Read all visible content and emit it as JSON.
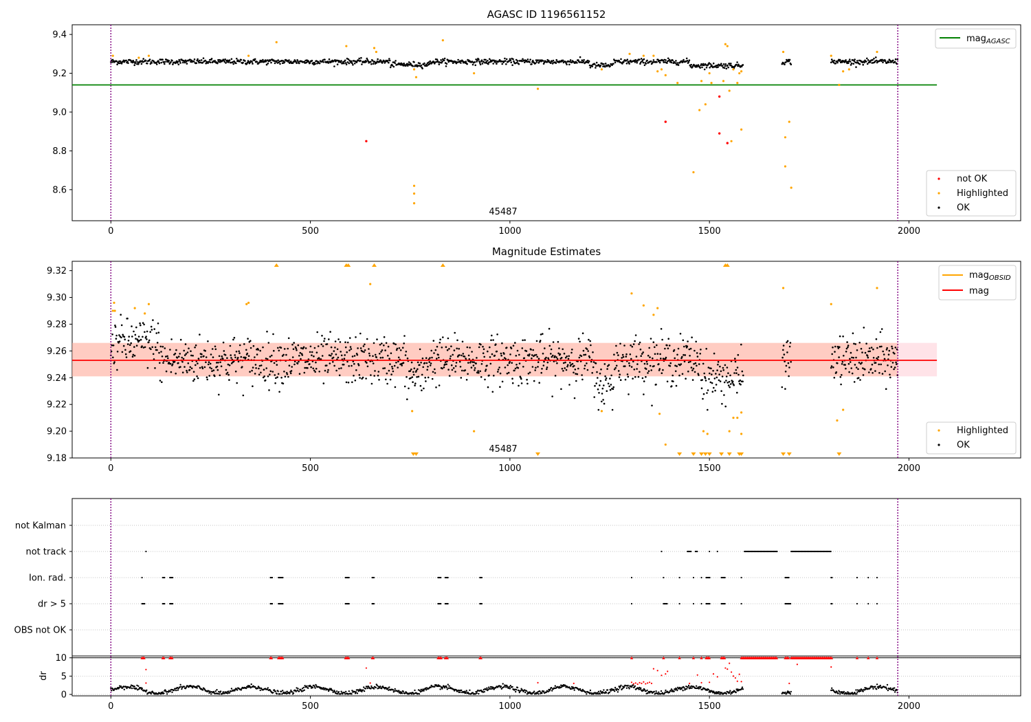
{
  "chart_data": [
    {
      "type": "scatter",
      "title": "AGASC ID 1196561152",
      "xlim": [
        -97,
        2280
      ],
      "ylim": [
        8.44,
        9.45
      ],
      "xticks": [
        "0",
        "500",
        "1000",
        "1500",
        "2000"
      ],
      "yticks": [
        "8.6",
        "8.8",
        "9.0",
        "9.2",
        "9.4"
      ],
      "annotation": "45487",
      "vlines": [
        0,
        1972
      ],
      "mag_agasc": 9.14,
      "legend_upper": [
        "mag_AGASC"
      ],
      "legend_lower": [
        "not OK",
        "Highlighted",
        "OK"
      ],
      "series": [
        {
          "name": "OK",
          "color": "#000000",
          "trend": 9.26,
          "segments": [
            [
              0,
              1585
            ],
            [
              1682,
              1705
            ],
            [
              1805,
              1972
            ]
          ]
        },
        {
          "name": "Highlighted",
          "color": "#ffa500",
          "points": [
            [
              5,
              9.29
            ],
            [
              70,
              9.28
            ],
            [
              95,
              9.29
            ],
            [
              345,
              9.29
            ],
            [
              415,
              9.36
            ],
            [
              590,
              9.34
            ],
            [
              660,
              9.33
            ],
            [
              665,
              9.31
            ],
            [
              760,
              9.22
            ],
            [
              765,
              9.18
            ],
            [
              760,
              8.62
            ],
            [
              760,
              8.58
            ],
            [
              760,
              8.53
            ],
            [
              832,
              9.37
            ],
            [
              910,
              9.2
            ],
            [
              1070,
              9.12
            ],
            [
              1230,
              9.22
            ],
            [
              1300,
              9.3
            ],
            [
              1335,
              9.29
            ],
            [
              1360,
              9.29
            ],
            [
              1370,
              9.21
            ],
            [
              1380,
              9.22
            ],
            [
              1390,
              9.19
            ],
            [
              1420,
              9.15
            ],
            [
              1460,
              8.69
            ],
            [
              1475,
              9.01
            ],
            [
              1480,
              9.16
            ],
            [
              1490,
              9.04
            ],
            [
              1500,
              9.2
            ],
            [
              1505,
              9.15
            ],
            [
              1535,
              9.16
            ],
            [
              1540,
              9.35
            ],
            [
              1545,
              9.34
            ],
            [
              1550,
              9.11
            ],
            [
              1555,
              8.85
            ],
            [
              1560,
              9.22
            ],
            [
              1570,
              9.15
            ],
            [
              1575,
              9.2
            ],
            [
              1580,
              8.91
            ],
            [
              1580,
              9.21
            ],
            [
              1685,
              9.31
            ],
            [
              1690,
              8.87
            ],
            [
              1690,
              8.72
            ],
            [
              1700,
              8.95
            ],
            [
              1705,
              8.61
            ],
            [
              1805,
              9.29
            ],
            [
              1825,
              9.14
            ],
            [
              1835,
              9.21
            ],
            [
              1850,
              9.22
            ],
            [
              1920,
              9.31
            ]
          ]
        },
        {
          "name": "not OK",
          "color": "#ff0000",
          "points": [
            [
              640,
              8.85
            ],
            [
              1390,
              8.95
            ],
            [
              1525,
              9.08
            ],
            [
              1525,
              8.89
            ],
            [
              1545,
              8.84
            ]
          ]
        }
      ]
    },
    {
      "type": "scatter",
      "title": "Magnitude Estimates",
      "xlim": [
        -97,
        2280
      ],
      "ylim": [
        9.18,
        9.327
      ],
      "xticks": [
        "0",
        "500",
        "1000",
        "1500",
        "2000"
      ],
      "yticks": [
        "9.18",
        "9.20",
        "9.22",
        "9.24",
        "9.26",
        "9.28",
        "9.30",
        "9.32"
      ],
      "annotation": "45487",
      "vlines": [
        0,
        1972
      ],
      "mag": 9.253,
      "mag_band": [
        9.241,
        9.266
      ],
      "legend_upper": [
        "mag_OBSID",
        "mag"
      ],
      "legend_lower": [
        "Highlighted",
        "OK"
      ],
      "highlighted_points": [
        [
          5,
          9.29
        ],
        [
          8,
          9.296
        ],
        [
          10,
          9.29
        ],
        [
          60,
          9.292
        ],
        [
          85,
          9.288
        ],
        [
          95,
          9.295
        ],
        [
          340,
          9.295
        ],
        [
          345,
          9.296
        ],
        [
          650,
          9.31
        ],
        [
          755,
          9.215
        ],
        [
          910,
          9.2
        ],
        [
          1230,
          9.215
        ],
        [
          1305,
          9.303
        ],
        [
          1335,
          9.294
        ],
        [
          1360,
          9.287
        ],
        [
          1370,
          9.292
        ],
        [
          1375,
          9.213
        ],
        [
          1390,
          9.19
        ],
        [
          1485,
          9.2
        ],
        [
          1495,
          9.198
        ],
        [
          1550,
          9.2
        ],
        [
          1560,
          9.21
        ],
        [
          1570,
          9.21
        ],
        [
          1580,
          9.198
        ],
        [
          1580,
          9.214
        ],
        [
          1685,
          9.307
        ],
        [
          1805,
          9.295
        ],
        [
          1820,
          9.208
        ],
        [
          1835,
          9.216
        ],
        [
          1920,
          9.307
        ]
      ],
      "triangles_up": [
        415,
        590,
        595,
        660,
        832,
        1540,
        1545
      ],
      "triangles_down": [
        758,
        765,
        1070,
        1425,
        1460,
        1480,
        1490,
        1500,
        1530,
        1550,
        1575,
        1580,
        1685,
        1700,
        1825
      ]
    },
    {
      "type": "scatter",
      "title": "",
      "xlim": [
        -97,
        2280
      ],
      "xticks": [
        "0",
        "500",
        "1000",
        "1500",
        "2000"
      ],
      "vlines": [
        0,
        1972
      ],
      "categories": [
        "not Kalman",
        "not track",
        "Ion. rad.",
        "dr > 5",
        "OBS not OK"
      ],
      "flag_events": {
        "not track": [
          [
            88,
            88
          ],
          [
            1380,
            1380
          ],
          [
            1445,
            1455
          ],
          [
            1465,
            1470
          ],
          [
            1500,
            1500
          ],
          [
            1520,
            1520
          ],
          [
            1588,
            1670
          ],
          [
            1705,
            1805
          ]
        ],
        "Ion. rad.": [
          [
            78,
            78
          ],
          [
            130,
            135
          ],
          [
            148,
            155
          ],
          [
            400,
            405
          ],
          [
            420,
            432
          ],
          [
            588,
            597
          ],
          [
            655,
            660
          ],
          [
            820,
            828
          ],
          [
            838,
            845
          ],
          [
            925,
            930
          ],
          [
            1305,
            1305
          ],
          [
            1385,
            1385
          ],
          [
            1425,
            1425
          ],
          [
            1460,
            1460
          ],
          [
            1480,
            1480
          ],
          [
            1492,
            1502
          ],
          [
            1530,
            1540
          ],
          [
            1580,
            1582
          ],
          [
            1690,
            1700
          ],
          [
            1805,
            1808
          ],
          [
            1870,
            1870
          ],
          [
            1898,
            1898
          ],
          [
            1920,
            1920
          ]
        ],
        "dr > 5": [
          [
            78,
            85
          ],
          [
            130,
            135
          ],
          [
            148,
            155
          ],
          [
            400,
            405
          ],
          [
            420,
            432
          ],
          [
            588,
            597
          ],
          [
            655,
            660
          ],
          [
            820,
            828
          ],
          [
            838,
            845
          ],
          [
            925,
            930
          ],
          [
            1305,
            1305
          ],
          [
            1385,
            1395
          ],
          [
            1425,
            1425
          ],
          [
            1460,
            1460
          ],
          [
            1480,
            1480
          ],
          [
            1492,
            1502
          ],
          [
            1530,
            1540
          ],
          [
            1580,
            1582
          ],
          [
            1690,
            1705
          ],
          [
            1805,
            1808
          ],
          [
            1870,
            1870
          ],
          [
            1898,
            1898
          ],
          [
            1920,
            1920
          ]
        ]
      }
    },
    {
      "type": "scatter",
      "title": "",
      "ylabel": "dr",
      "xlim": [
        -97,
        2280
      ],
      "ylim": [
        -0.4,
        10.5
      ],
      "xticks": [
        "0",
        "500",
        "1000",
        "1500",
        "2000"
      ],
      "yticks": [
        "0",
        "5",
        "10"
      ],
      "vlines": [
        0,
        1972
      ],
      "ok_segments": [
        [
          0,
          1585
        ],
        [
          1682,
          1705
        ],
        [
          1805,
          1972
        ]
      ],
      "capped_at_10": [
        [
          78,
          85
        ],
        [
          130,
          135
        ],
        [
          148,
          155
        ],
        [
          400,
          405
        ],
        [
          420,
          432
        ],
        [
          588,
          597
        ],
        [
          655,
          660
        ],
        [
          820,
          828
        ],
        [
          838,
          845
        ],
        [
          925,
          930
        ],
        [
          1305,
          1305
        ],
        [
          1385,
          1385
        ],
        [
          1425,
          1425
        ],
        [
          1460,
          1460
        ],
        [
          1480,
          1480
        ],
        [
          1492,
          1502
        ],
        [
          1530,
          1540
        ],
        [
          1580,
          1670
        ],
        [
          1690,
          1700
        ],
        [
          1705,
          1808
        ],
        [
          1870,
          1870
        ],
        [
          1898,
          1898
        ],
        [
          1920,
          1920
        ]
      ],
      "red_points": [
        [
          88,
          6.8
        ],
        [
          88,
          3.1
        ],
        [
          640,
          7.2
        ],
        [
          650,
          3.1
        ],
        [
          1070,
          3.2
        ],
        [
          1160,
          3.0
        ],
        [
          1305,
          3.3
        ],
        [
          1310,
          2.9
        ],
        [
          1315,
          3.1
        ],
        [
          1320,
          2.8
        ],
        [
          1325,
          3.2
        ],
        [
          1330,
          3.0
        ],
        [
          1335,
          3.4
        ],
        [
          1340,
          2.9
        ],
        [
          1345,
          3.1
        ],
        [
          1350,
          3.3
        ],
        [
          1355,
          3.0
        ],
        [
          1360,
          7.0
        ],
        [
          1370,
          6.5
        ],
        [
          1380,
          5.2
        ],
        [
          1390,
          5.6
        ],
        [
          1395,
          6.3
        ],
        [
          1450,
          3.0
        ],
        [
          1470,
          5.3
        ],
        [
          1480,
          3.2
        ],
        [
          1500,
          3.3
        ],
        [
          1510,
          5.6
        ],
        [
          1520,
          4.8
        ],
        [
          1540,
          7.2
        ],
        [
          1545,
          6.9
        ],
        [
          1550,
          8.5
        ],
        [
          1555,
          6.1
        ],
        [
          1560,
          5.0
        ],
        [
          1565,
          4.5
        ],
        [
          1570,
          3.6
        ],
        [
          1575,
          5.5
        ],
        [
          1580,
          3.5
        ],
        [
          1700,
          3.0
        ],
        [
          1720,
          8.2
        ],
        [
          1805,
          7.5
        ]
      ]
    }
  ]
}
